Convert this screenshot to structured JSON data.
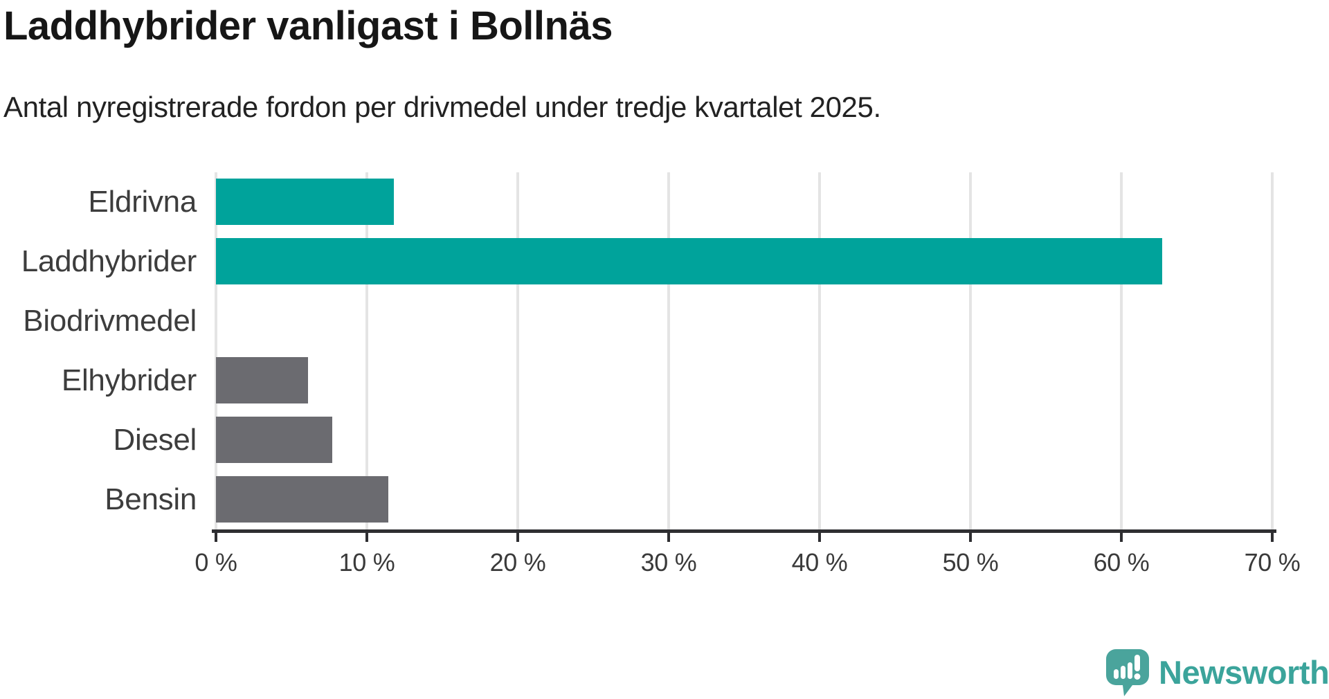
{
  "chart_data": {
    "type": "bar",
    "orientation": "horizontal",
    "title": "Laddhybrider vanligast i Bollnäs",
    "subtitle": "Antal nyregistrerade fordon per drivmedel under tredje kvartalet 2025.",
    "categories": [
      "Eldrivna",
      "Laddhybrider",
      "Biodrivmedel",
      "Elhybrider",
      "Diesel",
      "Bensin"
    ],
    "values": [
      11.8,
      62.7,
      0,
      6.1,
      7.7,
      11.4
    ],
    "unit": "%",
    "xlim": [
      0,
      70
    ],
    "x_tick_labels": [
      "0 %",
      "10 %",
      "20 %",
      "30 %",
      "40 %",
      "50 %",
      "60 %",
      "70 %"
    ],
    "grid": "vertical-gridlines-on",
    "legend": "none",
    "bar_color_keys": [
      "teal",
      "teal",
      "gray",
      "gray",
      "gray",
      "gray"
    ]
  },
  "colors": {
    "teal": "#00a39b",
    "gray": "#6b6b70",
    "grid": "#e4e4e4",
    "axis": "#2e2e31",
    "title_text": "#161616",
    "label_text": "#3d3d3d",
    "logo_teal": "#4aa49c",
    "wordmark_teal": "#3ba49b"
  },
  "branding": {
    "wordmark": "Newsworthy",
    "logo_icon": "speech-bubble-with-bar-chart-and-exclamation"
  }
}
